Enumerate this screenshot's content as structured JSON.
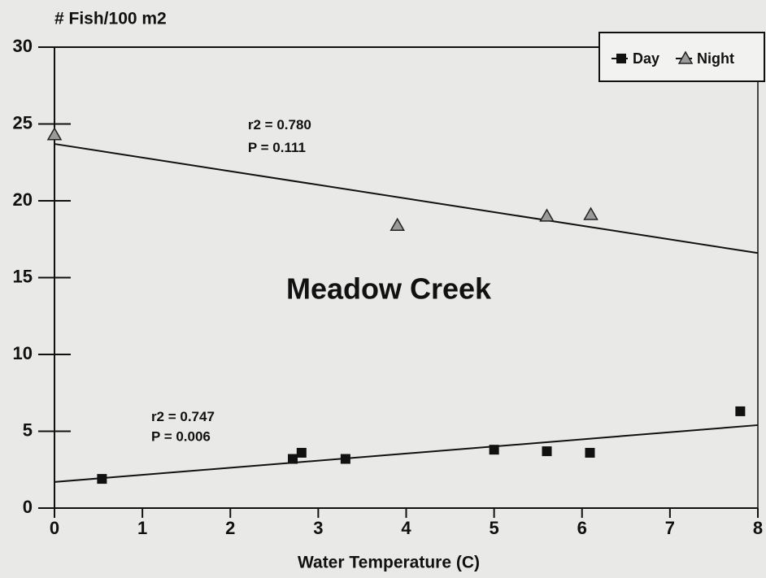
{
  "chart_data": {
    "type": "scatter",
    "title": "Meadow Creek",
    "ylabel": "# Fish/100 m2",
    "xlabel": "Water Temperature (C)",
    "xlim": [
      0,
      8
    ],
    "xticks": [
      0,
      1,
      2,
      3,
      4,
      5,
      6,
      7,
      8
    ],
    "ylim": [
      0,
      30
    ],
    "yticks": [
      0,
      5,
      10,
      15,
      20,
      25,
      30
    ],
    "legend": "upper right",
    "series": [
      {
        "name": "Day",
        "color": "#111111",
        "marker": "square",
        "x": [
          0.54,
          2.71,
          2.81,
          3.31,
          5.0,
          5.6,
          6.09,
          7.8
        ],
        "values": [
          1.9,
          3.2,
          3.6,
          3.2,
          3.8,
          3.7,
          3.6,
          6.3
        ],
        "trend": {
          "x": [
            0,
            8
          ],
          "values": [
            1.7,
            5.4
          ]
        }
      },
      {
        "name": "Night",
        "color": "#9a9a9a",
        "marker": "triangle",
        "x": [
          0,
          3.9,
          5.6,
          6.1
        ],
        "values": [
          24.3,
          18.4,
          19.0,
          19.1
        ],
        "trend": {
          "x": [
            0,
            8
          ],
          "values": [
            23.7,
            16.6
          ]
        }
      }
    ],
    "annotations": [
      {
        "text": "r2 = 0.780",
        "x": 2.2,
        "y": 24.9
      },
      {
        "text": "P = 0.111",
        "x": 2.2,
        "y": 23.4
      },
      {
        "text": "r2 = 0.747",
        "x": 1.1,
        "y": 5.9
      },
      {
        "text": "P = 0.006",
        "x": 1.1,
        "y": 4.6
      }
    ]
  }
}
